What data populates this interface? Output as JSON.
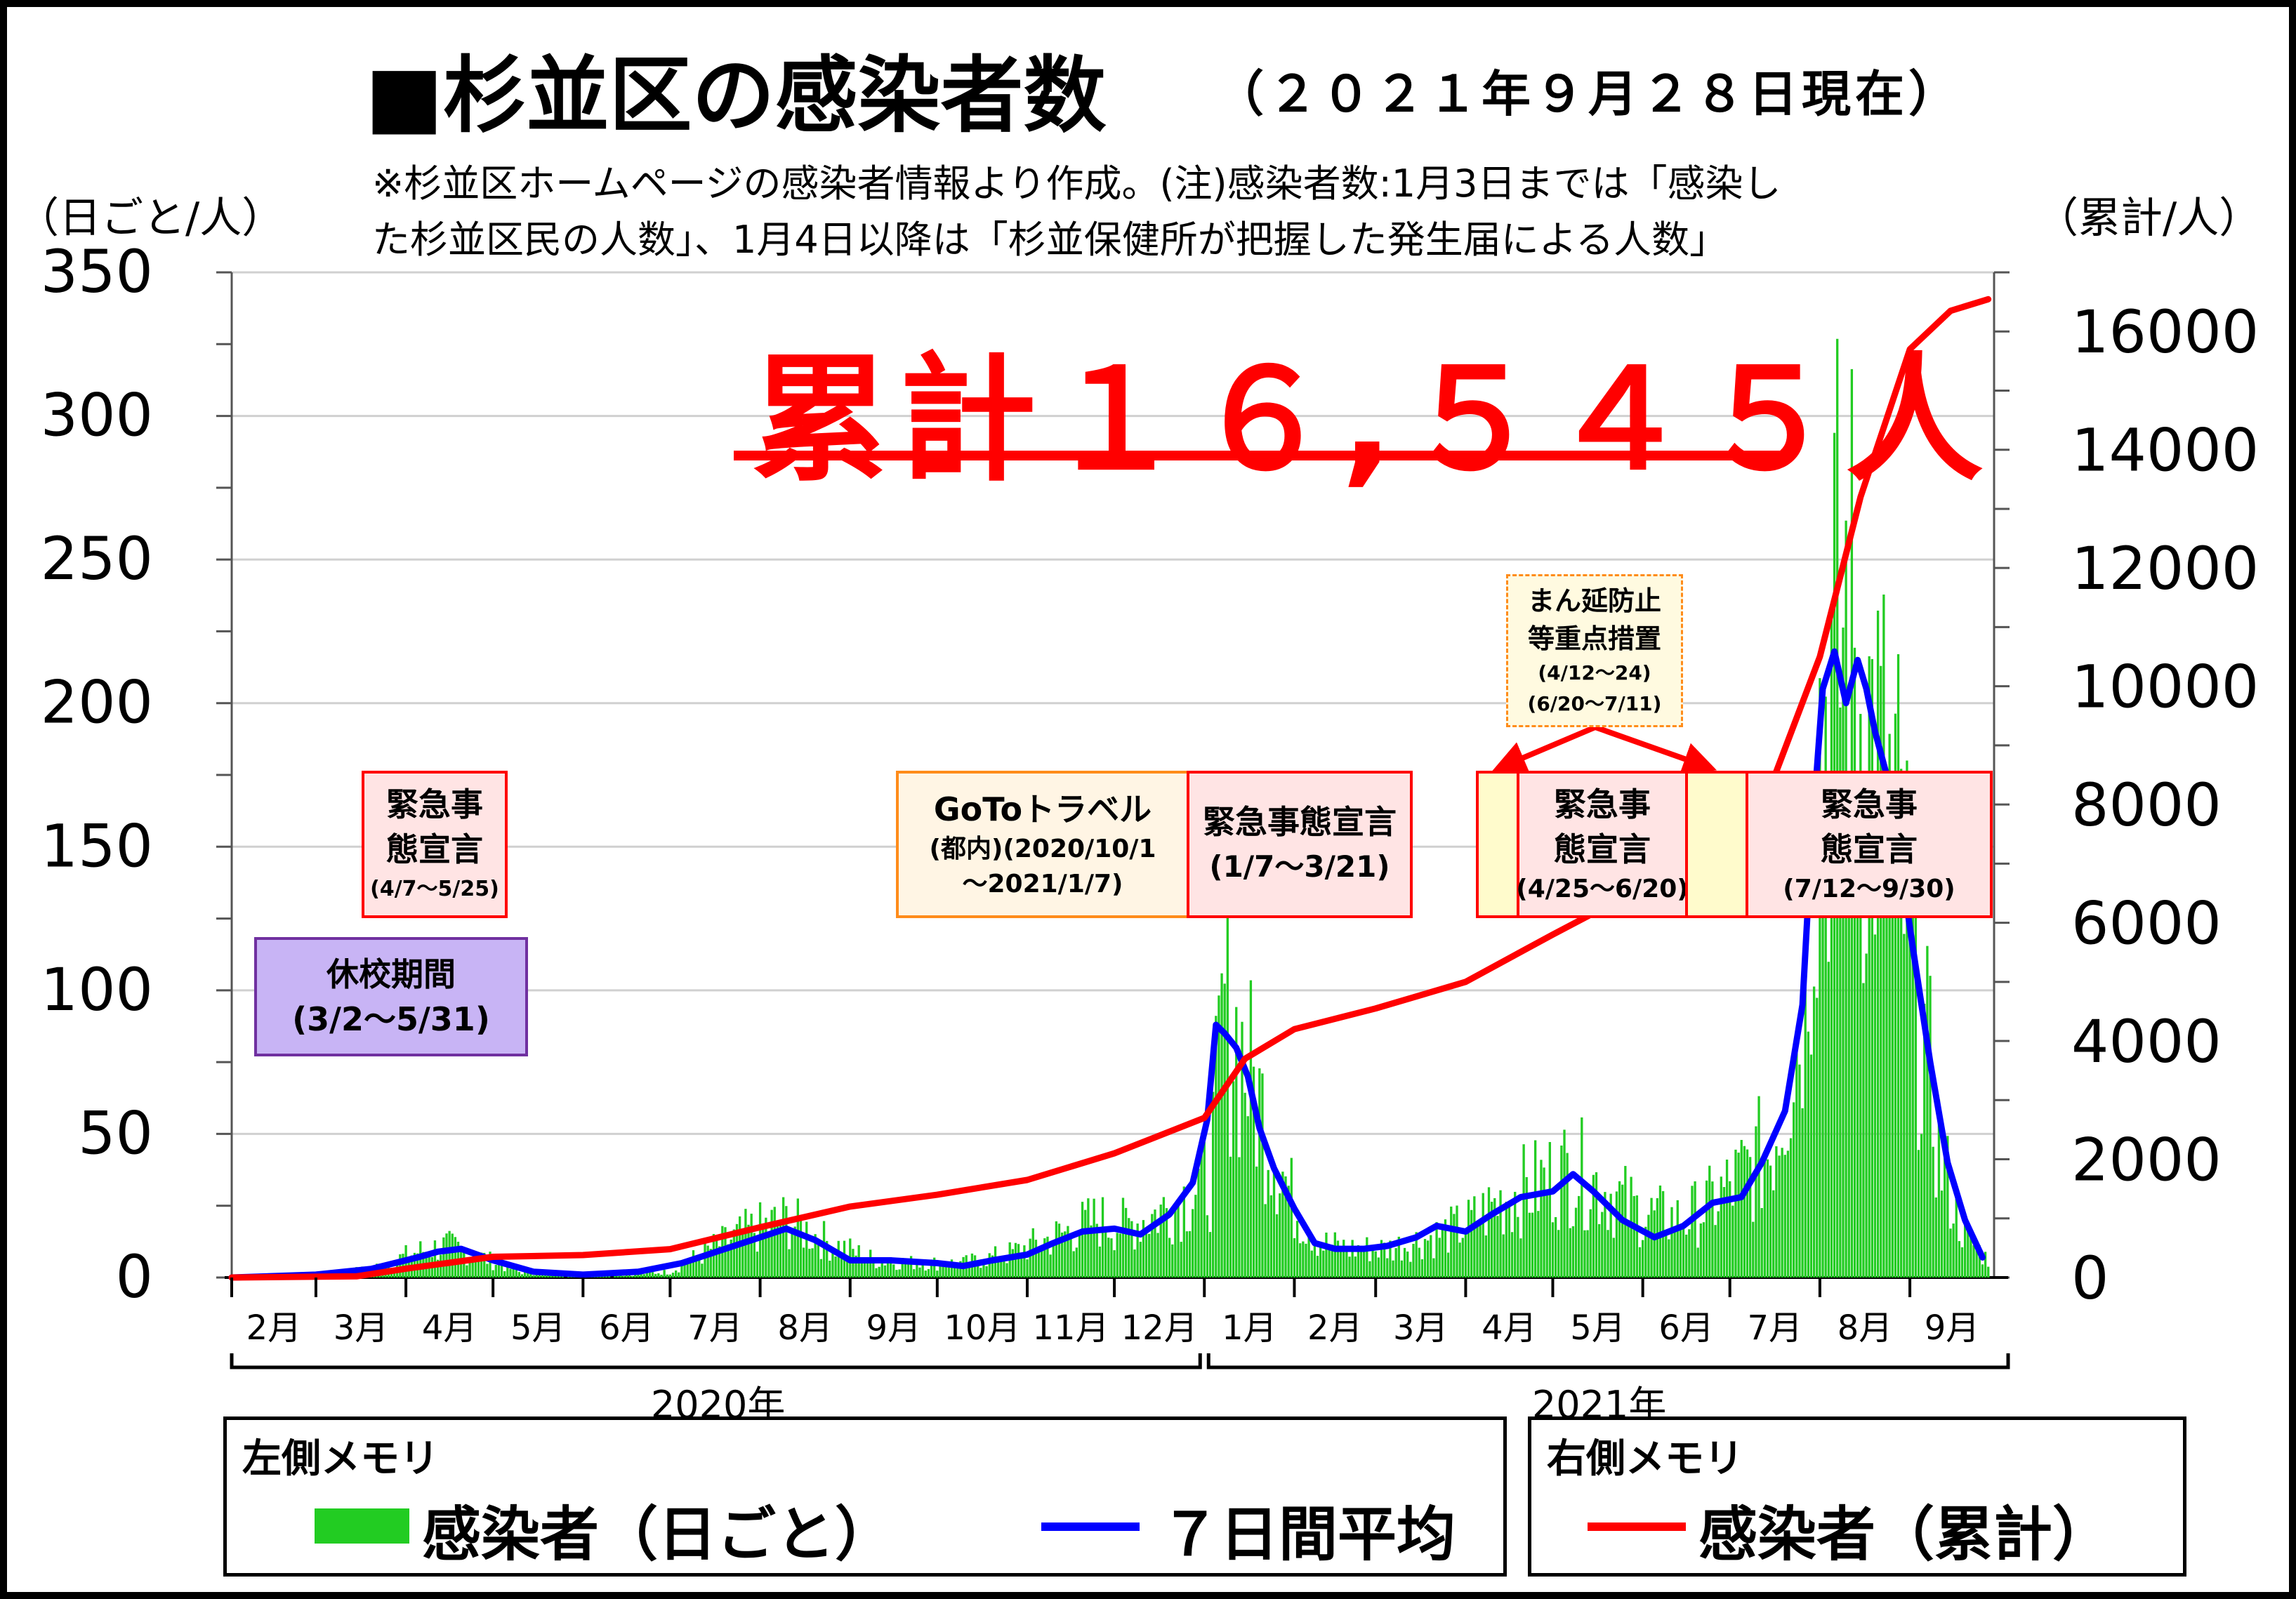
{
  "title": "■杉並区の感染者数",
  "date": "（２０２１年９月２８日現在）",
  "note_lines": [
    "※杉並区ホームページの感染者情報より作成。(注)感染者数:1月3日までは「感染し",
    "た杉並区民の人数」、1月4日以降は「杉並保健所が把握した発生届による人数」"
  ],
  "total_label": "累計１６,５４５人",
  "colors": {
    "daily": "#22cc22",
    "avg": "#0000ff",
    "cumulative": "#ff0000",
    "grid": "#d0d0d0"
  },
  "annotations": {
    "kyuko": {
      "line1": "休校期間",
      "line2": "(3/2～5/31)"
    },
    "kinkyu1": {
      "line1": "緊急事",
      "line1b": "態宣言",
      "line2": "(4/7～5/25)"
    },
    "goto": {
      "line1": "GoToトラベル",
      "line2": "(都内)(2020/10/1",
      "line3": "～2021/1/7)"
    },
    "kinkyu2": {
      "line1": "緊急事態宣言",
      "line2": "(1/7～3/21)"
    },
    "manen": {
      "line1": "まん延防止",
      "line1b": "等重点措置",
      "line2": "(4/12～24)",
      "line3": "(6/20～7/11)"
    },
    "kinkyu3": {
      "line1": "緊急事",
      "line1b": "態宣言",
      "line2": "(4/25～6/20)"
    },
    "kinkyu4": {
      "line1": "緊急事",
      "line1b": "態宣言",
      "line2": "(7/12～9/30)"
    }
  },
  "legend": {
    "left_title": "左側メモリ",
    "daily_label": "感染者（日ごと）",
    "avg_label": "７日間平均",
    "right_title": "右側メモリ",
    "cum_label": "感染者（累計）"
  },
  "chart_data": {
    "type": "bar",
    "ylabel": "（日ごと/人）",
    "y2label": "（累計/人）",
    "ylim": [
      0,
      350
    ],
    "y2lim": [
      0,
      17000
    ],
    "yticks": [
      0,
      50,
      100,
      150,
      200,
      250,
      300,
      350
    ],
    "y2ticks": [
      0,
      2000,
      4000,
      6000,
      8000,
      10000,
      12000,
      14000,
      16000
    ],
    "xlim": [
      "2020-02-01",
      "2021-09-30"
    ],
    "month_labels": [
      "2月",
      "3月",
      "4月",
      "5月",
      "6月",
      "7月",
      "8月",
      "9月",
      "10月",
      "11月",
      "12月",
      "1月",
      "2月",
      "3月",
      "4月",
      "5月",
      "6月",
      "7月",
      "8月",
      "9月"
    ],
    "year_labels": [
      "2020年",
      "2021年"
    ],
    "grid": "horizontal",
    "series": [
      {
        "name": "感染者（日ごと）",
        "type": "bar",
        "axis": "left",
        "x": [
          "2020-02-01",
          "2020-03-01",
          "2020-03-20",
          "2020-04-05",
          "2020-04-15",
          "2020-04-25",
          "2020-05-10",
          "2020-05-25",
          "2020-06-15",
          "2020-07-01",
          "2020-07-15",
          "2020-07-28",
          "2020-08-10",
          "2020-08-25",
          "2020-09-10",
          "2020-09-25",
          "2020-10-10",
          "2020-10-25",
          "2020-11-10",
          "2020-11-25",
          "2020-12-05",
          "2020-12-15",
          "2020-12-25",
          "2021-01-03",
          "2021-01-08",
          "2021-01-15",
          "2021-01-22",
          "2021-02-01",
          "2021-02-10",
          "2021-02-20",
          "2021-03-05",
          "2021-03-20",
          "2021-04-01",
          "2021-04-15",
          "2021-04-25",
          "2021-05-08",
          "2021-05-20",
          "2021-06-01",
          "2021-06-15",
          "2021-06-25",
          "2021-07-05",
          "2021-07-15",
          "2021-07-25",
          "2021-08-01",
          "2021-08-05",
          "2021-08-10",
          "2021-08-15",
          "2021-08-20",
          "2021-08-28",
          "2021-09-05",
          "2021-09-12",
          "2021-09-20",
          "2021-09-28"
        ],
        "values": [
          0,
          1,
          3,
          9,
          11,
          8,
          2,
          1,
          1,
          2,
          10,
          16,
          20,
          12,
          6,
          5,
          5,
          8,
          14,
          20,
          18,
          22,
          28,
          35,
          95,
          75,
          55,
          25,
          12,
          10,
          10,
          14,
          18,
          28,
          32,
          38,
          30,
          22,
          20,
          26,
          35,
          45,
          90,
          190,
          210,
          230,
          200,
          180,
          150,
          90,
          40,
          15,
          6
        ]
      },
      {
        "name": "７日間平均",
        "type": "line",
        "axis": "left",
        "x": [
          "2020-02-01",
          "2020-03-01",
          "2020-03-20",
          "2020-04-05",
          "2020-04-12",
          "2020-04-20",
          "2020-05-01",
          "2020-05-15",
          "2020-06-01",
          "2020-06-20",
          "2020-07-05",
          "2020-07-20",
          "2020-08-01",
          "2020-08-10",
          "2020-08-20",
          "2020-09-01",
          "2020-09-15",
          "2020-10-01",
          "2020-10-10",
          "2020-10-20",
          "2020-11-01",
          "2020-11-10",
          "2020-11-20",
          "2020-12-01",
          "2020-12-10",
          "2020-12-20",
          "2020-12-28",
          "2021-01-02",
          "2021-01-05",
          "2021-01-08",
          "2021-01-12",
          "2021-01-16",
          "2021-01-20",
          "2021-01-25",
          "2021-02-01",
          "2021-02-08",
          "2021-02-15",
          "2021-02-25",
          "2021-03-05",
          "2021-03-15",
          "2021-03-22",
          "2021-04-01",
          "2021-04-10",
          "2021-04-20",
          "2021-05-01",
          "2021-05-08",
          "2021-05-15",
          "2021-05-25",
          "2021-06-05",
          "2021-06-15",
          "2021-06-25",
          "2021-07-05",
          "2021-07-12",
          "2021-07-20",
          "2021-07-26",
          "2021-07-29",
          "2021-08-02",
          "2021-08-06",
          "2021-08-10",
          "2021-08-14",
          "2021-08-17",
          "2021-08-20",
          "2021-08-24",
          "2021-08-28",
          "2021-09-02",
          "2021-09-08",
          "2021-09-14",
          "2021-09-20",
          "2021-09-26"
        ],
        "values": [
          0,
          1,
          3,
          7,
          9,
          10,
          6,
          2,
          1,
          2,
          5,
          10,
          14,
          17,
          13,
          6,
          6,
          5,
          4,
          6,
          8,
          12,
          16,
          17,
          15,
          22,
          33,
          55,
          88,
          85,
          80,
          70,
          52,
          38,
          24,
          12,
          10,
          10,
          11,
          14,
          18,
          16,
          22,
          28,
          30,
          36,
          30,
          20,
          14,
          18,
          26,
          28,
          40,
          58,
          95,
          150,
          205,
          218,
          200,
          215,
          205,
          190,
          175,
          150,
          115,
          75,
          40,
          20,
          7
        ]
      },
      {
        "name": "感染者（累計）",
        "type": "line",
        "axis": "right",
        "x": [
          "2020-02-01",
          "2020-03-15",
          "2020-04-01",
          "2020-05-01",
          "2020-06-01",
          "2020-07-01",
          "2020-08-01",
          "2020-09-01",
          "2020-10-01",
          "2020-11-01",
          "2020-12-01",
          "2021-01-01",
          "2021-01-15",
          "2021-02-01",
          "2021-03-01",
          "2021-04-01",
          "2021-05-01",
          "2021-06-01",
          "2021-07-01",
          "2021-07-15",
          "2021-08-01",
          "2021-08-15",
          "2021-09-01",
          "2021-09-15",
          "2021-09-28"
        ],
        "values": [
          0,
          20,
          150,
          350,
          380,
          480,
          850,
          1200,
          1400,
          1650,
          2100,
          2700,
          3700,
          4200,
          4550,
          5000,
          5800,
          6600,
          7500,
          8300,
          10500,
          13200,
          15700,
          16350,
          16545
        ]
      }
    ]
  }
}
